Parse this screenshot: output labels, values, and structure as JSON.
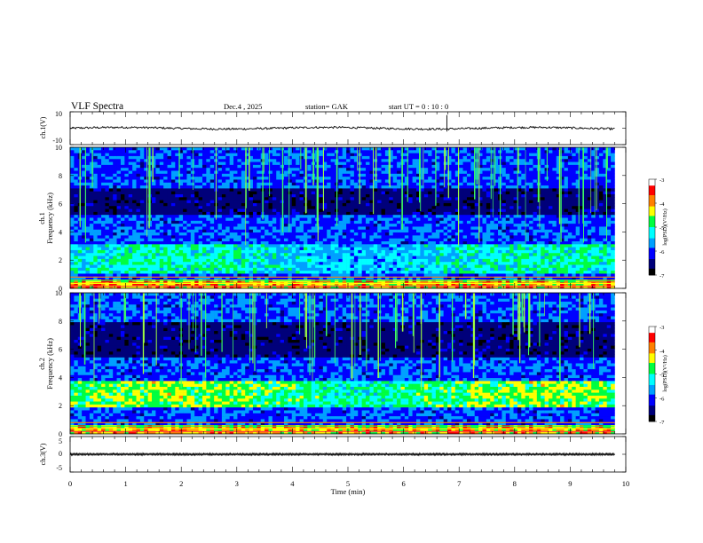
{
  "header": {
    "title": "VLF  Spectra",
    "date": "Dec.4  , 2025",
    "station": "station= GAK",
    "start_ut": "start  UT  =   0  : 10 : 0"
  },
  "colors": {
    "text": "#000000",
    "panel_background": "#000033",
    "colormap": [
      "#000000",
      "#00007a",
      "#0000ff",
      "#00a0ff",
      "#00ffff",
      "#00ff40",
      "#ffff00",
      "#ff8000",
      "#ff0000",
      "#ffffff"
    ]
  },
  "chart_data": [
    {
      "type": "line",
      "name": "ch1-waveform",
      "ylabel": "ch.1(V)",
      "ylim": [
        -10,
        10
      ],
      "yticks": [
        "10",
        "-10"
      ],
      "xlim": [
        0,
        10
      ],
      "approx_level": 0,
      "approx_amplitude": 2
    },
    {
      "type": "heatmap",
      "name": "ch1-spectrogram",
      "ylabel_top": "ch.1",
      "ylabel": "Frequency  (kHz)",
      "ylim": [
        0,
        10
      ],
      "yticks": [
        "0",
        "2",
        "4",
        "6",
        "8",
        "10"
      ],
      "xlim": [
        0,
        9.8
      ],
      "colorbar": {
        "label": "log(PSD)(V²/Hz)",
        "range": [
          -7,
          -3
        ],
        "ticks": [
          "-3",
          "-4",
          "-5",
          "-6",
          "-7"
        ]
      },
      "dark_band_khz": [
        5.3,
        7.0
      ],
      "bright_band_khz": [
        1.0,
        3.2
      ]
    },
    {
      "type": "heatmap",
      "name": "ch2-spectrogram",
      "ylabel_top": "ch.2",
      "ylabel": "Frequency  (kHz)",
      "ylim": [
        0,
        10
      ],
      "yticks": [
        "0",
        "2",
        "4",
        "6",
        "8",
        "10"
      ],
      "xlim": [
        0,
        9.8
      ],
      "colorbar": {
        "label": "log(PSD)(V²/Hz)",
        "range": [
          -7,
          -3
        ],
        "ticks": [
          "-3",
          "-4",
          "-5",
          "-6",
          "-7"
        ]
      },
      "dark_band_khz": [
        5.5,
        8.0
      ],
      "bright_band_khz": [
        1.8,
        3.8
      ]
    },
    {
      "type": "line",
      "name": "ch3-waveform",
      "ylabel": "ch.3(V)",
      "ylim": [
        -5,
        5
      ],
      "yticks": [
        "5",
        "0",
        "-5"
      ],
      "xlim": [
        0,
        10
      ],
      "approx_level": 0,
      "approx_amplitude": 0.3
    }
  ],
  "xaxis": {
    "xlabel": "Time  (min)",
    "ticks": [
      "0",
      "1",
      "2",
      "3",
      "4",
      "5",
      "6",
      "7",
      "8",
      "9",
      "10"
    ],
    "range": [
      0,
      10
    ]
  }
}
